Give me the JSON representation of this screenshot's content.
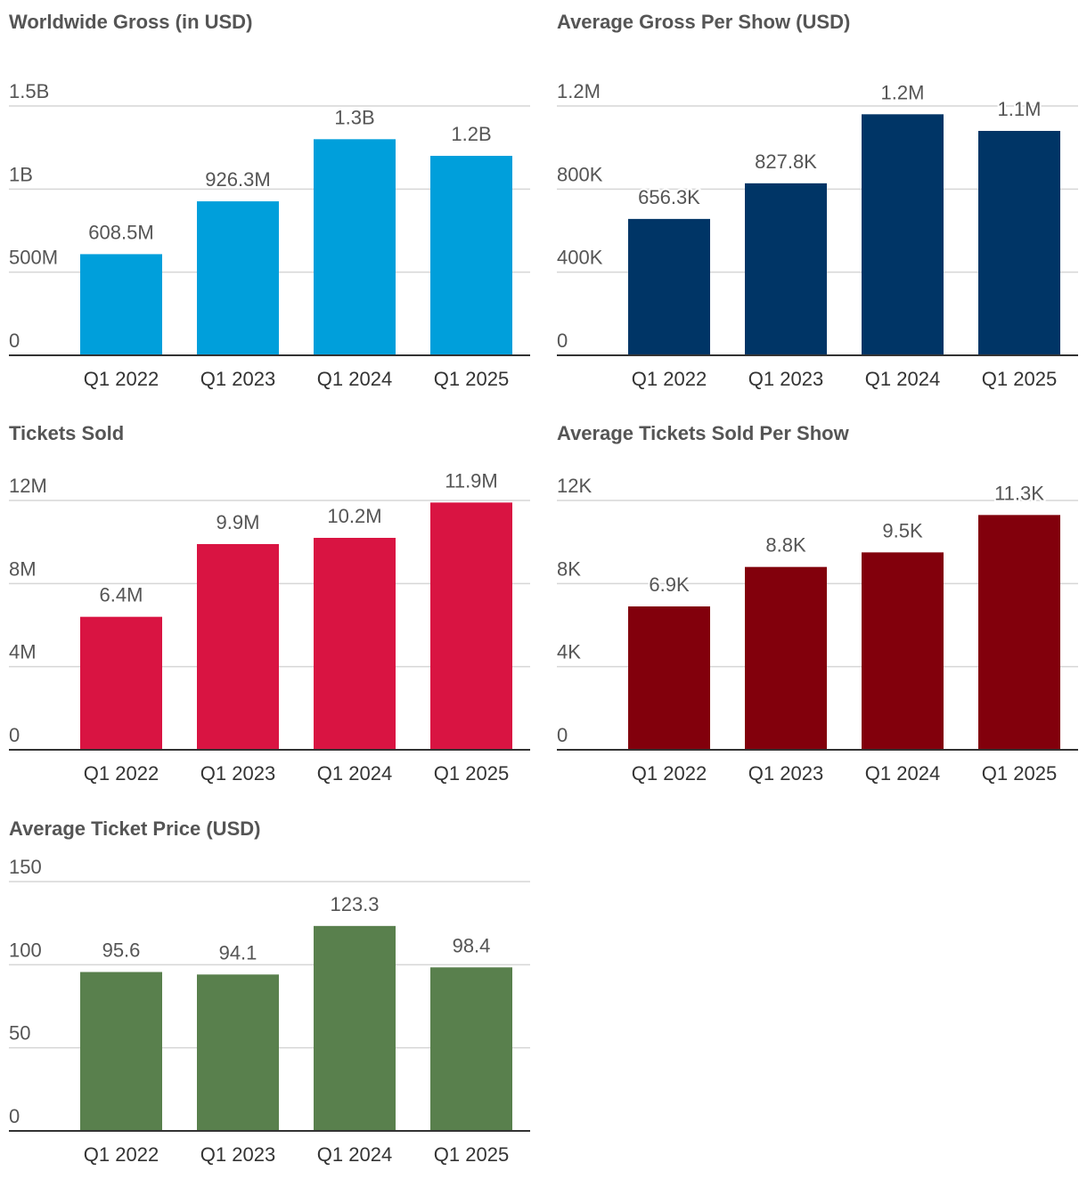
{
  "chart_data": [
    {
      "type": "bar",
      "title": "Worldwide Gross (in USD)",
      "categories": [
        "Q1 2022",
        "Q1 2023",
        "Q1 2024",
        "Q1 2025"
      ],
      "values": [
        608500000,
        926300000,
        1300000000,
        1200000000
      ],
      "value_labels": [
        "608.5M",
        "926.3M",
        "1.3B",
        "1.2B"
      ],
      "ylim": [
        0,
        1500000000
      ],
      "yticks": [
        0,
        500000000,
        1000000000,
        1500000000
      ],
      "ytick_labels": [
        "0",
        "500M",
        "1B",
        "1.5B"
      ],
      "color": "#009fdb",
      "xlabel": "",
      "ylabel": ""
    },
    {
      "type": "bar",
      "title": "Average Gross Per Show (USD)",
      "categories": [
        "Q1 2022",
        "Q1 2023",
        "Q1 2024",
        "Q1 2025"
      ],
      "values": [
        656300,
        827800,
        1160000,
        1080000
      ],
      "value_labels": [
        "656.3K",
        "827.8K",
        "1.2M",
        "1.1M"
      ],
      "ylim": [
        0,
        1200000
      ],
      "yticks": [
        0,
        400000,
        800000,
        1200000
      ],
      "ytick_labels": [
        "0",
        "400K",
        "800K",
        "1.2M"
      ],
      "color": "#003566",
      "xlabel": "",
      "ylabel": ""
    },
    {
      "type": "bar",
      "title": "Tickets Sold",
      "categories": [
        "Q1 2022",
        "Q1 2023",
        "Q1 2024",
        "Q1 2025"
      ],
      "values": [
        6400000,
        9900000,
        10200000,
        11900000
      ],
      "value_labels": [
        "6.4M",
        "9.9M",
        "10.2M",
        "11.9M"
      ],
      "ylim": [
        0,
        12000000
      ],
      "yticks": [
        0,
        4000000,
        8000000,
        12000000
      ],
      "ytick_labels": [
        "0",
        "4M",
        "8M",
        "12M"
      ],
      "color": "#d91442",
      "xlabel": "",
      "ylabel": ""
    },
    {
      "type": "bar",
      "title": "Average Tickets Sold Per Show",
      "categories": [
        "Q1 2022",
        "Q1 2023",
        "Q1 2024",
        "Q1 2025"
      ],
      "values": [
        6900,
        8800,
        9500,
        11300
      ],
      "value_labels": [
        "6.9K",
        "8.8K",
        "9.5K",
        "11.3K"
      ],
      "ylim": [
        0,
        12000
      ],
      "yticks": [
        0,
        4000,
        8000,
        12000
      ],
      "ytick_labels": [
        "0",
        "4K",
        "8K",
        "12K"
      ],
      "color": "#82000c",
      "xlabel": "",
      "ylabel": ""
    },
    {
      "type": "bar",
      "title": "Average Ticket Price (USD)",
      "categories": [
        "Q1 2022",
        "Q1 2023",
        "Q1 2024",
        "Q1 2025"
      ],
      "values": [
        95.6,
        94.1,
        123.3,
        98.4
      ],
      "value_labels": [
        "95.6",
        "94.1",
        "123.3",
        "98.4"
      ],
      "ylim": [
        0,
        150
      ],
      "yticks": [
        0,
        50,
        100,
        150
      ],
      "ytick_labels": [
        "0",
        "50",
        "100",
        "150"
      ],
      "color": "#59804d",
      "xlabel": "",
      "ylabel": ""
    }
  ]
}
